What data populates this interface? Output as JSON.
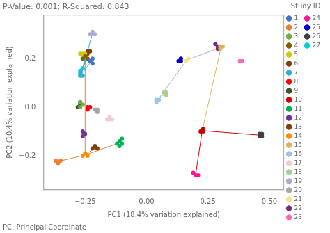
{
  "chart_data": {
    "type": "scatter",
    "title": "P-Value: 0.001; R-Squared: 0.843",
    "xlabel": "PC1 (18.4% variation explained)",
    "ylabel": "PC2 (10.4% variation explained)",
    "footnote": "PC: Principal Coordinate",
    "legend_title": "Study ID",
    "legend": "right",
    "grid": false,
    "xlim": [
      -0.42,
      0.56
    ],
    "ylim": [
      -0.34,
      0.38
    ],
    "xticks": [
      {
        "value": -0.25,
        "label": "−0.25"
      },
      {
        "value": 0.0,
        "label": "0.00"
      },
      {
        "value": 0.25,
        "label": "0.25"
      },
      {
        "value": 0.5,
        "label": "0.50"
      }
    ],
    "yticks": [
      {
        "value": -0.2,
        "label": "−0.2"
      },
      {
        "value": 0.0,
        "label": "0.0"
      },
      {
        "value": 0.2,
        "label": "0.2"
      }
    ],
    "series": [
      {
        "name": "1",
        "color": "#4472C4",
        "values": [
          [
            -0.22,
            0.2
          ],
          [
            -0.22,
            0.18
          ],
          [
            -0.23,
            0.19
          ]
        ]
      },
      {
        "name": "2",
        "color": "#ED7D31",
        "values": [
          [
            -0.35,
            -0.22
          ],
          [
            -0.37,
            -0.22
          ],
          [
            -0.36,
            -0.23
          ]
        ]
      },
      {
        "name": "3",
        "color": "#70AD47",
        "values": [
          [
            -0.27,
            0.02
          ],
          [
            -0.27,
            0.0
          ],
          [
            -0.26,
            0.01
          ]
        ]
      },
      {
        "name": "4",
        "color": "#7F6000",
        "values": [
          [
            -0.26,
            0.2
          ],
          [
            -0.25,
            0.21
          ],
          [
            -0.24,
            0.2
          ]
        ]
      },
      {
        "name": "5",
        "color": "#CCCC00",
        "values": [
          [
            -0.26,
            0.22
          ],
          [
            -0.25,
            0.22
          ],
          [
            -0.27,
            0.22
          ]
        ]
      },
      {
        "name": "6",
        "color": "#843C0C",
        "values": [
          [
            -0.24,
            0.22
          ],
          [
            -0.24,
            0.23
          ],
          [
            -0.23,
            0.23
          ]
        ]
      },
      {
        "name": "7",
        "color": "#2EAFD5",
        "values": [
          [
            -0.27,
            0.13
          ],
          [
            -0.26,
            0.13
          ],
          [
            -0.27,
            0.14
          ]
        ]
      },
      {
        "name": "8",
        "color": "#FF0000",
        "values": [
          [
            -0.24,
            0.0
          ],
          [
            -0.24,
            -0.01
          ],
          [
            -0.23,
            0.0
          ]
        ]
      },
      {
        "name": "9",
        "color": "#375623",
        "values": [
          [
            -0.27,
            0.01
          ],
          [
            -0.28,
            0.0
          ],
          [
            -0.27,
            0.02
          ]
        ]
      },
      {
        "name": "10",
        "color": "#CC0000",
        "values": [
          [
            0.23,
            -0.09
          ],
          [
            0.23,
            -0.1
          ],
          [
            0.22,
            -0.1
          ]
        ]
      },
      {
        "name": "11",
        "color": "#00B050",
        "values": [
          [
            -0.11,
            -0.14
          ],
          [
            -0.12,
            -0.15
          ],
          [
            -0.1,
            -0.15
          ],
          [
            -0.11,
            -0.16
          ],
          [
            -0.1,
            -0.13
          ]
        ]
      },
      {
        "name": "12",
        "color": "#7030A0",
        "values": [
          [
            -0.25,
            -0.11
          ],
          [
            -0.26,
            -0.1
          ],
          [
            -0.26,
            -0.12
          ]
        ]
      },
      {
        "name": "13",
        "color": "#843C0C",
        "values": [
          [
            -0.21,
            -0.16
          ],
          [
            -0.22,
            -0.17
          ],
          [
            -0.2,
            -0.17
          ]
        ]
      },
      {
        "name": "14",
        "color": "#FF8C00",
        "values": [
          [
            -0.25,
            -0.19
          ],
          [
            -0.26,
            -0.2
          ],
          [
            -0.24,
            -0.2
          ]
        ]
      },
      {
        "name": "15",
        "color": "#D4B85A",
        "values": [
          [
            0.3,
            0.25
          ],
          [
            0.3,
            0.24
          ],
          [
            0.31,
            0.25
          ]
        ]
      },
      {
        "name": "16",
        "color": "#9DC3E6",
        "values": [
          [
            0.04,
            0.03
          ],
          [
            0.04,
            0.02
          ],
          [
            0.05,
            0.03
          ]
        ]
      },
      {
        "name": "17",
        "color": "#F4CCCC",
        "values": [
          [
            -0.15,
            -0.04
          ],
          [
            -0.15,
            -0.05
          ],
          [
            -0.14,
            -0.05
          ],
          [
            -0.16,
            -0.05
          ]
        ]
      },
      {
        "name": "18",
        "color": "#A9D18E",
        "values": [
          [
            0.08,
            0.06
          ],
          [
            0.08,
            0.05
          ],
          [
            0.07,
            0.06
          ]
        ]
      },
      {
        "name": "19",
        "color": "#B4A7D6",
        "values": [
          [
            -0.23,
            0.3
          ],
          [
            -0.22,
            0.31
          ],
          [
            -0.21,
            0.3
          ]
        ]
      },
      {
        "name": "20",
        "color": "#A6A6A6",
        "values": [
          [
            -0.2,
            -0.01
          ],
          [
            -0.21,
            -0.01
          ],
          [
            -0.2,
            -0.02
          ]
        ]
      },
      {
        "name": "21",
        "color": "#F0E68C",
        "values": [
          [
            0.16,
            0.19
          ],
          [
            0.17,
            0.2
          ],
          [
            0.16,
            0.19
          ]
        ]
      },
      {
        "name": "22",
        "color": "#7B2C7B",
        "values": [
          [
            0.29,
            0.25
          ],
          [
            0.29,
            0.24
          ],
          [
            0.28,
            0.26
          ]
        ]
      },
      {
        "name": "23",
        "color": "#FF69B4",
        "values": [
          [
            0.38,
            0.19
          ],
          [
            0.39,
            0.19
          ]
        ]
      },
      {
        "name": "24",
        "color": "#FF1493",
        "values": [
          [
            0.19,
            -0.27
          ],
          [
            0.2,
            -0.28
          ],
          [
            0.21,
            -0.28
          ]
        ]
      },
      {
        "name": "25",
        "color": "#0000CD",
        "values": [
          [
            0.14,
            0.19
          ],
          [
            0.13,
            0.19
          ],
          [
            0.14,
            0.2
          ]
        ]
      },
      {
        "name": "26",
        "color": "#404040",
        "values": [
          [
            0.46,
            -0.11
          ],
          [
            0.47,
            -0.11
          ],
          [
            0.47,
            -0.12
          ],
          [
            0.46,
            -0.12
          ]
        ]
      },
      {
        "name": "27",
        "color": "#00CED1",
        "values": [
          [
            -0.27,
            0.15
          ],
          [
            -0.26,
            0.16
          ]
        ]
      }
    ],
    "lines": [
      {
        "color": "#2EAFD5",
        "x": [
          -0.266667,
          -0.22
        ],
        "y": [
          0.133333,
          0.303333
        ]
      },
      {
        "color": "#2EAFD5",
        "x": [
          -0.266667,
          -0.265
        ],
        "y": [
          0.133333,
          0.155
        ]
      },
      {
        "color": "#2EAFD5",
        "x": [
          -0.266667,
          -0.223333
        ],
        "y": [
          0.133333,
          0.19
        ]
      },
      {
        "color": "#2EAFD5",
        "x": [
          -0.266667,
          -0.25
        ],
        "y": [
          0.133333,
          0.203333
        ]
      },
      {
        "color": "#2EAFD5",
        "x": [
          -0.266667,
          -0.236667
        ],
        "y": [
          0.133333,
          0.226667
        ]
      },
      {
        "color": "#9DC3E6",
        "x": [
          0.043333,
          0.076667
        ],
        "y": [
          0.026667,
          0.056667
        ]
      },
      {
        "color": "#B4A7D6",
        "x": [
          0.043333,
          0.163333
        ],
        "y": [
          0.026667,
          0.193333
        ]
      },
      {
        "color": "#B4A7D6",
        "x": [
          0.163333,
          0.303333
        ],
        "y": [
          0.193333,
          0.246667
        ]
      },
      {
        "color": "#ED7D31",
        "x": [
          -0.25,
          -0.21
        ],
        "y": [
          -0.196667,
          -0.166667
        ]
      },
      {
        "color": "#ED7D31",
        "x": [
          -0.25,
          -0.108
        ],
        "y": [
          -0.196667,
          -0.146
        ]
      },
      {
        "color": "#ED7D31",
        "x": [
          -0.25,
          -0.36
        ],
        "y": [
          -0.196667,
          -0.223333
        ]
      },
      {
        "color": "#ED7D31",
        "x": [
          -0.25,
          -0.25
        ],
        "y": [
          -0.196667,
          0.203333
        ]
      },
      {
        "color": "#CC0000",
        "x": [
          0.226667,
          0.465
        ],
        "y": [
          -0.096667,
          -0.115
        ]
      },
      {
        "color": "#CC0000",
        "x": [
          0.226667,
          0.2
        ],
        "y": [
          -0.096667,
          -0.276667
        ]
      },
      {
        "color": "#D4B85A",
        "x": [
          0.226667,
          0.303333
        ],
        "y": [
          -0.096667,
          0.246667
        ]
      }
    ]
  }
}
